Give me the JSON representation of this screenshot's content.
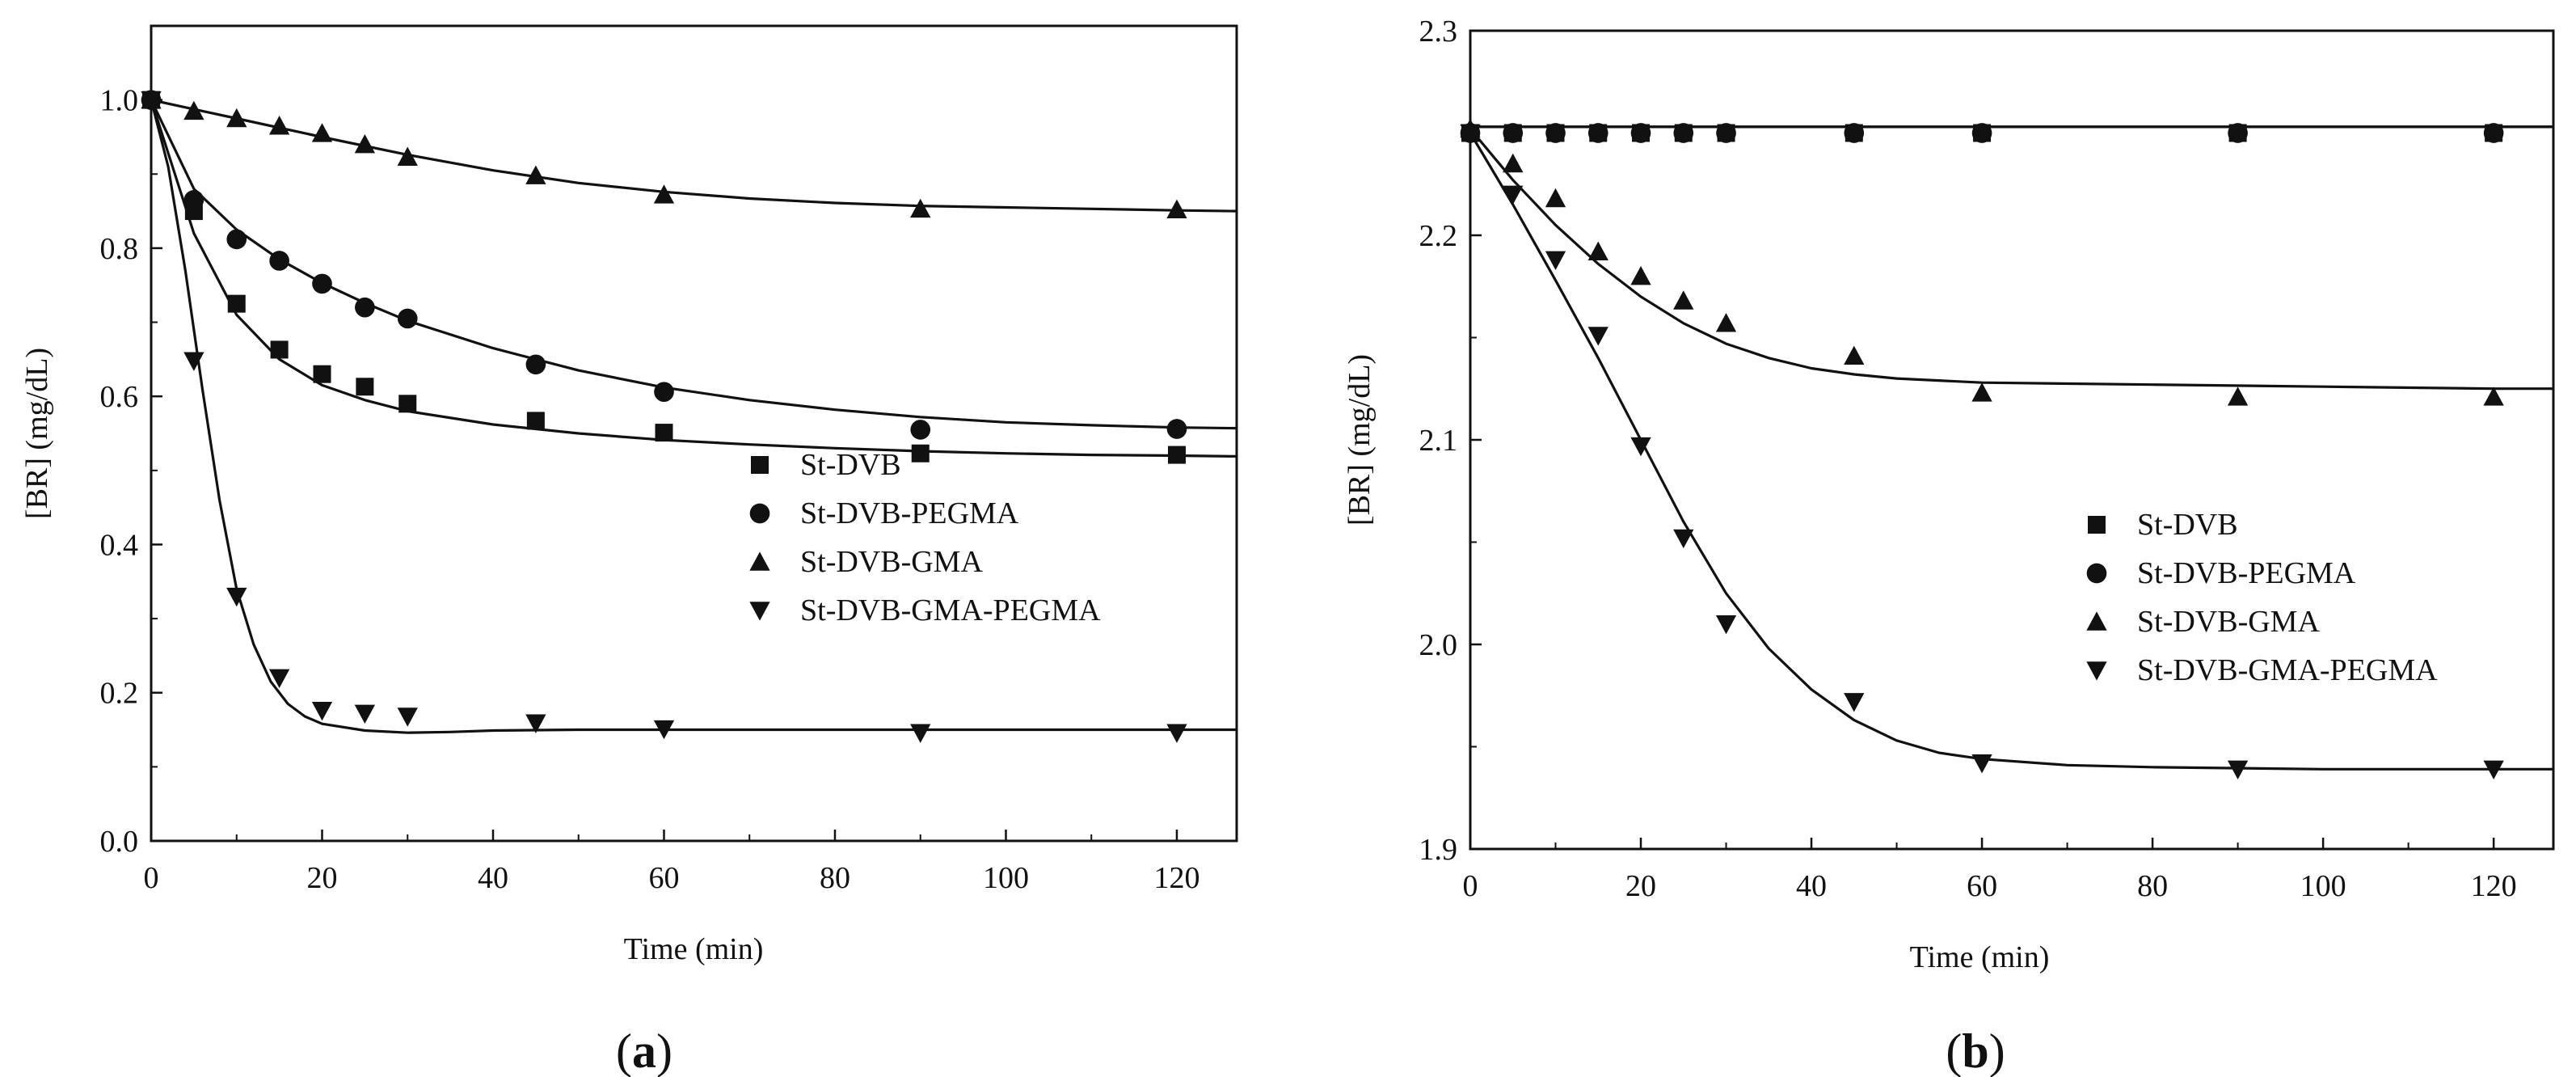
{
  "chart_data": [
    {
      "type": "scatter",
      "panel": "(a)",
      "panel_paren_open": "(",
      "panel_letter": "a",
      "panel_paren_close": ")",
      "xlabel": "Time (min)",
      "ylabel": "[BR] (mg/dL)",
      "xlim": [
        0,
        127
      ],
      "ylim": [
        0,
        1.1
      ],
      "xticks": [
        0,
        20,
        40,
        60,
        80,
        100,
        120
      ],
      "yticks": [
        0.0,
        0.2,
        0.4,
        0.6,
        0.8,
        1.0
      ],
      "ytick_labels": [
        "0.0",
        "0.2",
        "0.4",
        "0.6",
        "0.8",
        "1.0"
      ],
      "legend_position": "center-right",
      "series": [
        {
          "name": "St-DVB",
          "marker": "square",
          "x": [
            0,
            5,
            10,
            15,
            20,
            25,
            30,
            45,
            60,
            90,
            120
          ],
          "y": [
            1.0,
            0.85,
            0.725,
            0.663,
            0.63,
            0.613,
            0.59,
            0.567,
            0.551,
            0.523,
            0.521
          ],
          "fit": {
            "x": [
              0,
              5,
              10,
              15,
              20,
              25,
              30,
              40,
              50,
              60,
              70,
              80,
              90,
              100,
              110,
              120,
              127
            ],
            "y": [
              1.0,
              0.82,
              0.71,
              0.65,
              0.615,
              0.595,
              0.58,
              0.562,
              0.55,
              0.541,
              0.535,
              0.53,
              0.526,
              0.523,
              0.521,
              0.52,
              0.519
            ]
          }
        },
        {
          "name": "St-DVB-PEGMA",
          "marker": "circle",
          "x": [
            0,
            5,
            10,
            15,
            20,
            25,
            30,
            45,
            60,
            90,
            120
          ],
          "y": [
            1.0,
            0.865,
            0.812,
            0.783,
            0.752,
            0.72,
            0.705,
            0.643,
            0.606,
            0.555,
            0.556
          ],
          "fit": {
            "x": [
              0,
              5,
              10,
              15,
              20,
              25,
              30,
              40,
              50,
              60,
              70,
              80,
              90,
              100,
              110,
              120,
              127
            ],
            "y": [
              1.0,
              0.88,
              0.825,
              0.785,
              0.753,
              0.726,
              0.702,
              0.665,
              0.635,
              0.612,
              0.595,
              0.582,
              0.572,
              0.565,
              0.561,
              0.558,
              0.557
            ]
          }
        },
        {
          "name": "St-DVB-GMA",
          "marker": "triangle-up",
          "x": [
            0,
            5,
            10,
            15,
            20,
            25,
            30,
            45,
            60,
            90,
            120
          ],
          "y": [
            1.0,
            0.985,
            0.975,
            0.965,
            0.955,
            0.94,
            0.923,
            0.898,
            0.872,
            0.853,
            0.852
          ],
          "fit": {
            "x": [
              0,
              10,
              20,
              30,
              40,
              50,
              60,
              70,
              80,
              90,
              100,
              110,
              120,
              127
            ],
            "y": [
              1.0,
              0.975,
              0.95,
              0.926,
              0.905,
              0.888,
              0.876,
              0.867,
              0.861,
              0.857,
              0.855,
              0.853,
              0.851,
              0.85
            ]
          }
        },
        {
          "name": "St-DVB-GMA-PEGMA",
          "marker": "triangle-down",
          "x": [
            0,
            5,
            10,
            15,
            20,
            25,
            30,
            45,
            60,
            90,
            120
          ],
          "y": [
            1.0,
            0.648,
            0.33,
            0.22,
            0.176,
            0.172,
            0.168,
            0.159,
            0.151,
            0.146,
            0.146
          ],
          "fit": {
            "x": [
              0,
              2,
              4,
              6,
              8,
              10,
              12,
              14,
              16,
              18,
              20,
              25,
              30,
              35,
              40,
              50,
              60,
              80,
              100,
              120,
              127
            ],
            "y": [
              1.0,
              0.91,
              0.77,
              0.61,
              0.46,
              0.34,
              0.265,
              0.215,
              0.185,
              0.168,
              0.158,
              0.149,
              0.146,
              0.147,
              0.149,
              0.15,
              0.15,
              0.15,
              0.15,
              0.15,
              0.15
            ]
          }
        }
      ]
    },
    {
      "type": "scatter",
      "panel": "(b)",
      "panel_paren_open": "(",
      "panel_letter": "b",
      "panel_paren_close": ")",
      "xlabel": "Time (min)",
      "ylabel": "[BR] (mg/dL)",
      "xlim": [
        0,
        127
      ],
      "ylim": [
        1.9,
        2.3
      ],
      "xticks": [
        0,
        20,
        40,
        60,
        80,
        100,
        120
      ],
      "yticks": [
        1.9,
        2.0,
        2.1,
        2.2,
        2.3
      ],
      "ytick_labels": [
        "1.9",
        "2.0",
        "2.1",
        "2.2",
        "2.3"
      ],
      "legend_position": "lower-right",
      "series": [
        {
          "name": "St-DVB",
          "marker": "square",
          "x": [
            0,
            5,
            10,
            15,
            20,
            25,
            30,
            45,
            60,
            90,
            120
          ],
          "y": [
            2.25,
            2.25,
            2.25,
            2.25,
            2.25,
            2.25,
            2.25,
            2.25,
            2.25,
            2.25,
            2.25
          ],
          "fit": {
            "x": [
              0,
              127
            ],
            "y": [
              2.253,
              2.253
            ]
          }
        },
        {
          "name": "St-DVB-PEGMA",
          "marker": "circle",
          "x": [
            0,
            5,
            10,
            15,
            20,
            25,
            30,
            45,
            60,
            90,
            120
          ],
          "y": [
            2.25,
            2.25,
            2.25,
            2.25,
            2.25,
            2.25,
            2.25,
            2.25,
            2.25,
            2.25,
            2.25
          ],
          "fit": {
            "x": [
              0,
              127
            ],
            "y": [
              2.253,
              2.253
            ]
          }
        },
        {
          "name": "St-DVB-GMA",
          "marker": "triangle-up",
          "x": [
            0,
            5,
            10,
            15,
            20,
            25,
            30,
            45,
            60,
            90,
            120
          ],
          "y": [
            2.252,
            2.235,
            2.218,
            2.192,
            2.18,
            2.168,
            2.157,
            2.141,
            2.123,
            2.121,
            2.121
          ],
          "fit": {
            "x": [
              0,
              5,
              10,
              15,
              20,
              25,
              30,
              35,
              40,
              45,
              50,
              60,
              80,
              100,
              120,
              127
            ],
            "y": [
              2.252,
              2.227,
              2.205,
              2.186,
              2.17,
              2.157,
              2.147,
              2.14,
              2.135,
              2.132,
              2.13,
              2.128,
              2.127,
              2.126,
              2.125,
              2.125
            ]
          }
        },
        {
          "name": "St-DVB-GMA-PEGMA",
          "marker": "triangle-down",
          "x": [
            0,
            5,
            10,
            15,
            20,
            25,
            30,
            45,
            60,
            90,
            120
          ],
          "y": [
            2.25,
            2.22,
            2.188,
            2.151,
            2.097,
            2.052,
            2.01,
            1.972,
            1.942,
            1.939,
            1.939
          ],
          "fit": {
            "x": [
              0,
              5,
              10,
              15,
              20,
              25,
              30,
              35,
              40,
              45,
              50,
              55,
              60,
              70,
              80,
              100,
              120,
              127
            ],
            "y": [
              2.25,
              2.215,
              2.178,
              2.14,
              2.1,
              2.06,
              2.025,
              1.998,
              1.978,
              1.963,
              1.953,
              1.947,
              1.944,
              1.941,
              1.94,
              1.939,
              1.939,
              1.939
            ]
          }
        }
      ]
    }
  ]
}
